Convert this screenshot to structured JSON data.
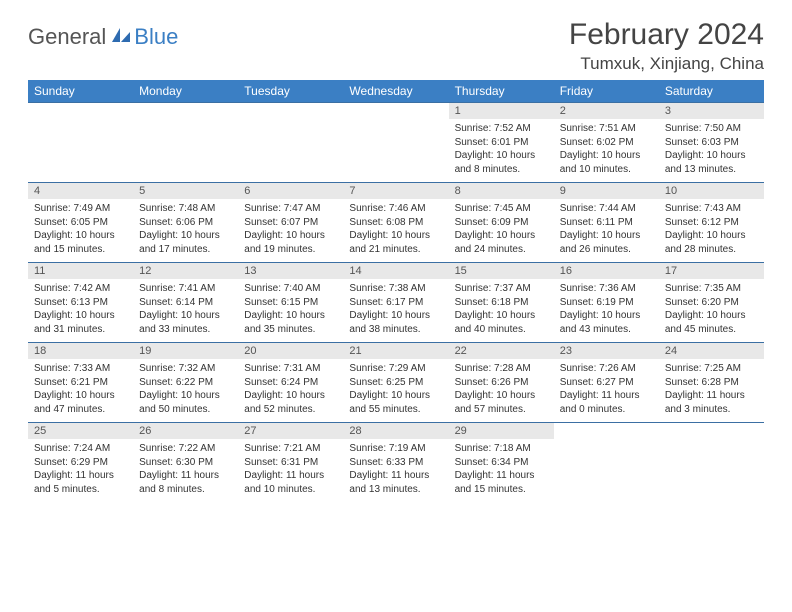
{
  "brand": {
    "part1": "General",
    "part2": "Blue"
  },
  "title": "February 2024",
  "location": "Tumxuk, Xinjiang, China",
  "colors": {
    "header_bg": "#3b7fc4",
    "header_text": "#ffffff",
    "daynum_bg": "#e8e8e8",
    "border": "#3b6fa3",
    "body_text": "#333333"
  },
  "day_headers": [
    "Sunday",
    "Monday",
    "Tuesday",
    "Wednesday",
    "Thursday",
    "Friday",
    "Saturday"
  ],
  "weeks": [
    [
      null,
      null,
      null,
      null,
      {
        "n": "1",
        "sr": "7:52 AM",
        "ss": "6:01 PM",
        "dl": "10 hours and 8 minutes."
      },
      {
        "n": "2",
        "sr": "7:51 AM",
        "ss": "6:02 PM",
        "dl": "10 hours and 10 minutes."
      },
      {
        "n": "3",
        "sr": "7:50 AM",
        "ss": "6:03 PM",
        "dl": "10 hours and 13 minutes."
      }
    ],
    [
      {
        "n": "4",
        "sr": "7:49 AM",
        "ss": "6:05 PM",
        "dl": "10 hours and 15 minutes."
      },
      {
        "n": "5",
        "sr": "7:48 AM",
        "ss": "6:06 PM",
        "dl": "10 hours and 17 minutes."
      },
      {
        "n": "6",
        "sr": "7:47 AM",
        "ss": "6:07 PM",
        "dl": "10 hours and 19 minutes."
      },
      {
        "n": "7",
        "sr": "7:46 AM",
        "ss": "6:08 PM",
        "dl": "10 hours and 21 minutes."
      },
      {
        "n": "8",
        "sr": "7:45 AM",
        "ss": "6:09 PM",
        "dl": "10 hours and 24 minutes."
      },
      {
        "n": "9",
        "sr": "7:44 AM",
        "ss": "6:11 PM",
        "dl": "10 hours and 26 minutes."
      },
      {
        "n": "10",
        "sr": "7:43 AM",
        "ss": "6:12 PM",
        "dl": "10 hours and 28 minutes."
      }
    ],
    [
      {
        "n": "11",
        "sr": "7:42 AM",
        "ss": "6:13 PM",
        "dl": "10 hours and 31 minutes."
      },
      {
        "n": "12",
        "sr": "7:41 AM",
        "ss": "6:14 PM",
        "dl": "10 hours and 33 minutes."
      },
      {
        "n": "13",
        "sr": "7:40 AM",
        "ss": "6:15 PM",
        "dl": "10 hours and 35 minutes."
      },
      {
        "n": "14",
        "sr": "7:38 AM",
        "ss": "6:17 PM",
        "dl": "10 hours and 38 minutes."
      },
      {
        "n": "15",
        "sr": "7:37 AM",
        "ss": "6:18 PM",
        "dl": "10 hours and 40 minutes."
      },
      {
        "n": "16",
        "sr": "7:36 AM",
        "ss": "6:19 PM",
        "dl": "10 hours and 43 minutes."
      },
      {
        "n": "17",
        "sr": "7:35 AM",
        "ss": "6:20 PM",
        "dl": "10 hours and 45 minutes."
      }
    ],
    [
      {
        "n": "18",
        "sr": "7:33 AM",
        "ss": "6:21 PM",
        "dl": "10 hours and 47 minutes."
      },
      {
        "n": "19",
        "sr": "7:32 AM",
        "ss": "6:22 PM",
        "dl": "10 hours and 50 minutes."
      },
      {
        "n": "20",
        "sr": "7:31 AM",
        "ss": "6:24 PM",
        "dl": "10 hours and 52 minutes."
      },
      {
        "n": "21",
        "sr": "7:29 AM",
        "ss": "6:25 PM",
        "dl": "10 hours and 55 minutes."
      },
      {
        "n": "22",
        "sr": "7:28 AM",
        "ss": "6:26 PM",
        "dl": "10 hours and 57 minutes."
      },
      {
        "n": "23",
        "sr": "7:26 AM",
        "ss": "6:27 PM",
        "dl": "11 hours and 0 minutes."
      },
      {
        "n": "24",
        "sr": "7:25 AM",
        "ss": "6:28 PM",
        "dl": "11 hours and 3 minutes."
      }
    ],
    [
      {
        "n": "25",
        "sr": "7:24 AM",
        "ss": "6:29 PM",
        "dl": "11 hours and 5 minutes."
      },
      {
        "n": "26",
        "sr": "7:22 AM",
        "ss": "6:30 PM",
        "dl": "11 hours and 8 minutes."
      },
      {
        "n": "27",
        "sr": "7:21 AM",
        "ss": "6:31 PM",
        "dl": "11 hours and 10 minutes."
      },
      {
        "n": "28",
        "sr": "7:19 AM",
        "ss": "6:33 PM",
        "dl": "11 hours and 13 minutes."
      },
      {
        "n": "29",
        "sr": "7:18 AM",
        "ss": "6:34 PM",
        "dl": "11 hours and 15 minutes."
      },
      null,
      null
    ]
  ],
  "labels": {
    "sunrise": "Sunrise: ",
    "sunset": "Sunset: ",
    "daylight": "Daylight: "
  }
}
